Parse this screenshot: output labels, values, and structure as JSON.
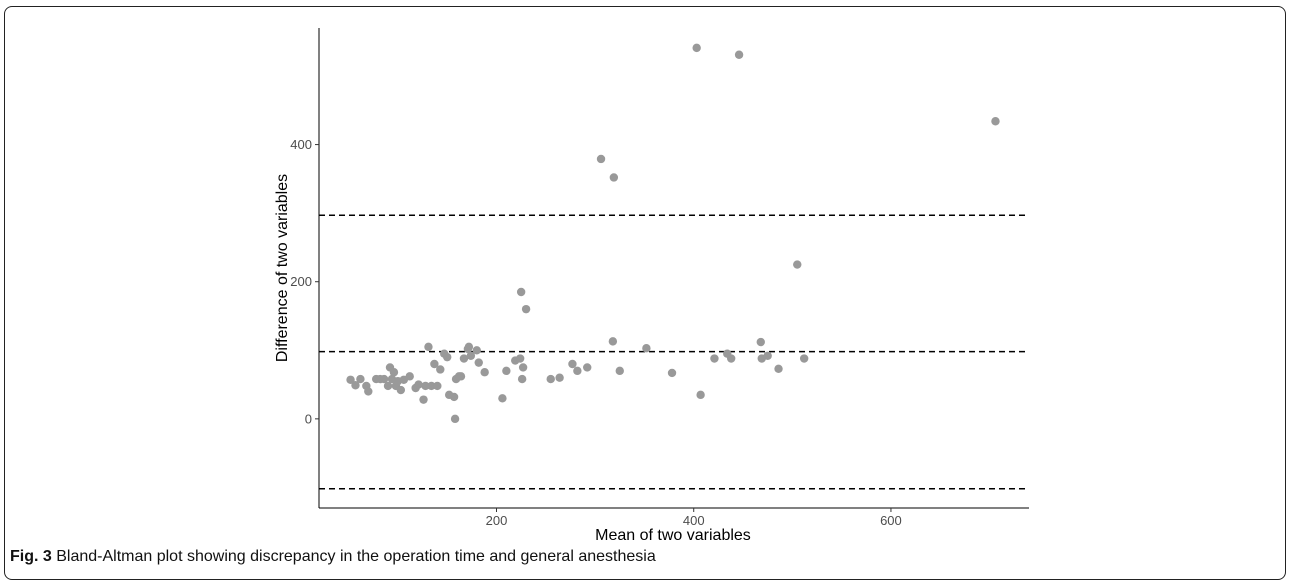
{
  "caption": {
    "label": "Fig. 3",
    "text": "Bland-Altman plot showing discrepancy in the operation time and general anesthesia"
  },
  "chart_data": {
    "type": "scatter",
    "title": "",
    "xlabel": "Mean of two variables",
    "ylabel": "Difference of two variables",
    "xlim": [
      20,
      740
    ],
    "ylim": [
      -130,
      570
    ],
    "xticks": [
      200,
      400,
      600
    ],
    "yticks": [
      0,
      200,
      400
    ],
    "grid": false,
    "point_color": "#999999",
    "hlines": [
      {
        "y": 98,
        "style": "dashed"
      },
      {
        "y": 297,
        "style": "dashed"
      },
      {
        "y": -102,
        "style": "dashed"
      }
    ],
    "points": [
      {
        "x": 52,
        "y": 57
      },
      {
        "x": 57,
        "y": 49
      },
      {
        "x": 62,
        "y": 58
      },
      {
        "x": 68,
        "y": 48
      },
      {
        "x": 70,
        "y": 40
      },
      {
        "x": 78,
        "y": 58
      },
      {
        "x": 82,
        "y": 58
      },
      {
        "x": 86,
        "y": 58
      },
      {
        "x": 90,
        "y": 48
      },
      {
        "x": 92,
        "y": 75
      },
      {
        "x": 94,
        "y": 58
      },
      {
        "x": 96,
        "y": 68
      },
      {
        "x": 98,
        "y": 48
      },
      {
        "x": 100,
        "y": 55
      },
      {
        "x": 103,
        "y": 42
      },
      {
        "x": 106,
        "y": 57
      },
      {
        "x": 112,
        "y": 62
      },
      {
        "x": 118,
        "y": 45
      },
      {
        "x": 121,
        "y": 50
      },
      {
        "x": 126,
        "y": 28
      },
      {
        "x": 128,
        "y": 48
      },
      {
        "x": 131,
        "y": 105
      },
      {
        "x": 134,
        "y": 48
      },
      {
        "x": 137,
        "y": 80
      },
      {
        "x": 140,
        "y": 48
      },
      {
        "x": 143,
        "y": 72
      },
      {
        "x": 147,
        "y": 95
      },
      {
        "x": 150,
        "y": 90
      },
      {
        "x": 152,
        "y": 35
      },
      {
        "x": 157,
        "y": 32
      },
      {
        "x": 158,
        "y": 0
      },
      {
        "x": 159,
        "y": 58
      },
      {
        "x": 162,
        "y": 62
      },
      {
        "x": 164,
        "y": 62
      },
      {
        "x": 167,
        "y": 88
      },
      {
        "x": 171,
        "y": 102
      },
      {
        "x": 172,
        "y": 105
      },
      {
        "x": 174,
        "y": 92
      },
      {
        "x": 180,
        "y": 100
      },
      {
        "x": 182,
        "y": 82
      },
      {
        "x": 188,
        "y": 68
      },
      {
        "x": 206,
        "y": 30
      },
      {
        "x": 210,
        "y": 70
      },
      {
        "x": 219,
        "y": 85
      },
      {
        "x": 224,
        "y": 88
      },
      {
        "x": 225,
        "y": 185
      },
      {
        "x": 226,
        "y": 58
      },
      {
        "x": 227,
        "y": 75
      },
      {
        "x": 230,
        "y": 160
      },
      {
        "x": 255,
        "y": 58
      },
      {
        "x": 264,
        "y": 60
      },
      {
        "x": 277,
        "y": 80
      },
      {
        "x": 282,
        "y": 70
      },
      {
        "x": 292,
        "y": 75
      },
      {
        "x": 306,
        "y": 379
      },
      {
        "x": 318,
        "y": 113
      },
      {
        "x": 319,
        "y": 352
      },
      {
        "x": 325,
        "y": 70
      },
      {
        "x": 352,
        "y": 103
      },
      {
        "x": 378,
        "y": 67
      },
      {
        "x": 403,
        "y": 541
      },
      {
        "x": 407,
        "y": 35
      },
      {
        "x": 421,
        "y": 88
      },
      {
        "x": 434,
        "y": 95
      },
      {
        "x": 438,
        "y": 88
      },
      {
        "x": 446,
        "y": 531
      },
      {
        "x": 468,
        "y": 112
      },
      {
        "x": 469,
        "y": 88
      },
      {
        "x": 475,
        "y": 92
      },
      {
        "x": 486,
        "y": 73
      },
      {
        "x": 505,
        "y": 225
      },
      {
        "x": 512,
        "y": 88
      },
      {
        "x": 706,
        "y": 434
      }
    ]
  }
}
